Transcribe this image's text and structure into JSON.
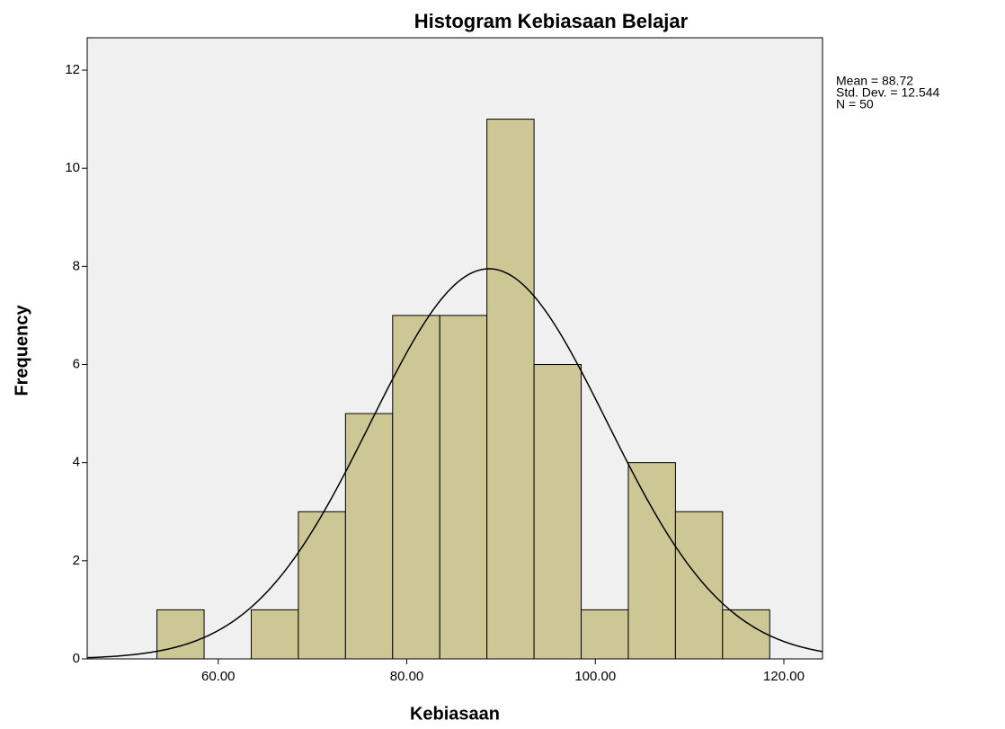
{
  "chart_data": {
    "type": "histogram",
    "title": "Histogram Kebiasaan Belajar",
    "x_label": "Kebiasaan",
    "y_label": "Frequency",
    "bins": [
      53.5,
      58.5,
      63.5,
      68.5,
      73.5,
      78.5,
      83.5,
      88.5,
      93.5,
      98.5,
      103.5,
      108.5,
      113.5,
      118.5
    ],
    "values": [
      1,
      0,
      1,
      3,
      5,
      7,
      7,
      11,
      6,
      1,
      4,
      3,
      1
    ],
    "color": "#cdc795",
    "xlim": [
      46.1,
      124.1
    ],
    "ylim": [
      0,
      12.66
    ],
    "xticks": [
      {
        "value": 60,
        "label": "60.00"
      },
      {
        "value": 80,
        "label": "80.00"
      },
      {
        "value": 100,
        "label": "100.00"
      },
      {
        "value": 120,
        "label": "120.00"
      }
    ],
    "yticks": [
      0,
      2,
      4,
      6,
      8,
      10,
      12
    ],
    "normal_curve": {
      "mean": 88.72,
      "std": 12.544,
      "n": 50
    },
    "stats_text": [
      "Mean = 88.72",
      "Std. Dev. = 12.544",
      "N = 50"
    ]
  }
}
